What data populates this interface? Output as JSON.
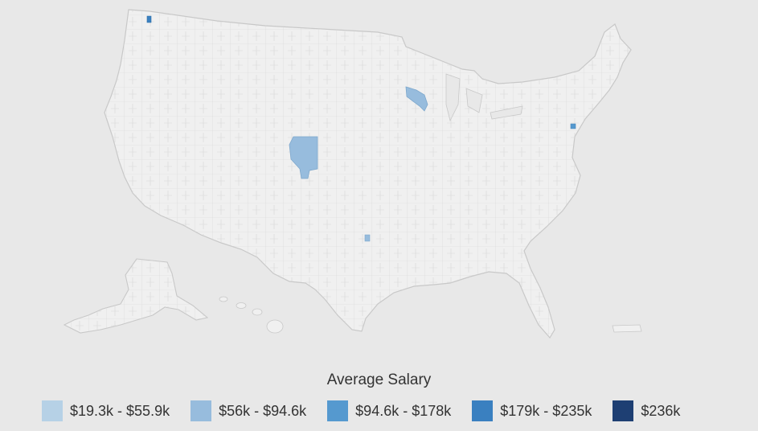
{
  "legend": {
    "title": "Average Salary",
    "items": [
      {
        "label": "$19.3k - $55.9k",
        "color": "#b6d1e6"
      },
      {
        "label": "$56k - $94.6k",
        "color": "#97bcdd"
      },
      {
        "label": "$94.6k - $178k",
        "color": "#5599cf"
      },
      {
        "label": "$179k - $235k",
        "color": "#3a80c0"
      },
      {
        "label": "$236k",
        "color": "#1e3f73"
      }
    ]
  },
  "map": {
    "type": "choropleth",
    "region": "United States (counties / PUMAs)",
    "base_fill": "#f0f0f0",
    "border_color": "#c8c8c8",
    "highlighted_bins": [
      "$56k - $94.6k",
      "$94.6k - $178k",
      "$179k - $235k"
    ]
  }
}
